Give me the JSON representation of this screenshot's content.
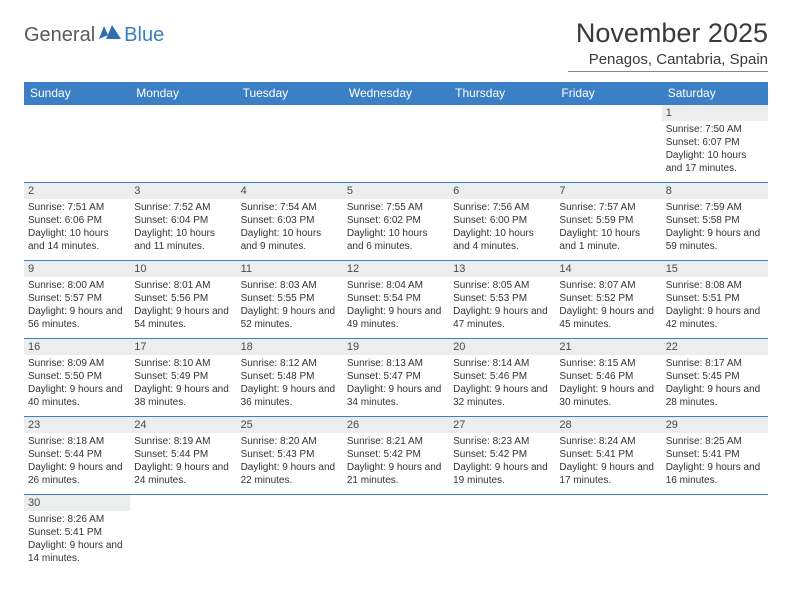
{
  "logo": {
    "part1": "General",
    "part2": "Blue"
  },
  "title": "November 2025",
  "location": "Penagos, Cantabria, Spain",
  "colors": {
    "headerBg": "#3b7fc4",
    "headerText": "#ffffff",
    "dayNumBg": "#eceded",
    "borderColor": "#3b7fc4",
    "logoGray": "#5a5a5a",
    "logoBlue": "#3a7fc0"
  },
  "weekdays": [
    "Sunday",
    "Monday",
    "Tuesday",
    "Wednesday",
    "Thursday",
    "Friday",
    "Saturday"
  ],
  "weeks": [
    [
      null,
      null,
      null,
      null,
      null,
      null,
      {
        "n": "1",
        "sr": "7:50 AM",
        "ss": "6:07 PM",
        "dl": "10 hours and 17 minutes."
      }
    ],
    [
      {
        "n": "2",
        "sr": "7:51 AM",
        "ss": "6:06 PM",
        "dl": "10 hours and 14 minutes."
      },
      {
        "n": "3",
        "sr": "7:52 AM",
        "ss": "6:04 PM",
        "dl": "10 hours and 11 minutes."
      },
      {
        "n": "4",
        "sr": "7:54 AM",
        "ss": "6:03 PM",
        "dl": "10 hours and 9 minutes."
      },
      {
        "n": "5",
        "sr": "7:55 AM",
        "ss": "6:02 PM",
        "dl": "10 hours and 6 minutes."
      },
      {
        "n": "6",
        "sr": "7:56 AM",
        "ss": "6:00 PM",
        "dl": "10 hours and 4 minutes."
      },
      {
        "n": "7",
        "sr": "7:57 AM",
        "ss": "5:59 PM",
        "dl": "10 hours and 1 minute."
      },
      {
        "n": "8",
        "sr": "7:59 AM",
        "ss": "5:58 PM",
        "dl": "9 hours and 59 minutes."
      }
    ],
    [
      {
        "n": "9",
        "sr": "8:00 AM",
        "ss": "5:57 PM",
        "dl": "9 hours and 56 minutes."
      },
      {
        "n": "10",
        "sr": "8:01 AM",
        "ss": "5:56 PM",
        "dl": "9 hours and 54 minutes."
      },
      {
        "n": "11",
        "sr": "8:03 AM",
        "ss": "5:55 PM",
        "dl": "9 hours and 52 minutes."
      },
      {
        "n": "12",
        "sr": "8:04 AM",
        "ss": "5:54 PM",
        "dl": "9 hours and 49 minutes."
      },
      {
        "n": "13",
        "sr": "8:05 AM",
        "ss": "5:53 PM",
        "dl": "9 hours and 47 minutes."
      },
      {
        "n": "14",
        "sr": "8:07 AM",
        "ss": "5:52 PM",
        "dl": "9 hours and 45 minutes."
      },
      {
        "n": "15",
        "sr": "8:08 AM",
        "ss": "5:51 PM",
        "dl": "9 hours and 42 minutes."
      }
    ],
    [
      {
        "n": "16",
        "sr": "8:09 AM",
        "ss": "5:50 PM",
        "dl": "9 hours and 40 minutes."
      },
      {
        "n": "17",
        "sr": "8:10 AM",
        "ss": "5:49 PM",
        "dl": "9 hours and 38 minutes."
      },
      {
        "n": "18",
        "sr": "8:12 AM",
        "ss": "5:48 PM",
        "dl": "9 hours and 36 minutes."
      },
      {
        "n": "19",
        "sr": "8:13 AM",
        "ss": "5:47 PM",
        "dl": "9 hours and 34 minutes."
      },
      {
        "n": "20",
        "sr": "8:14 AM",
        "ss": "5:46 PM",
        "dl": "9 hours and 32 minutes."
      },
      {
        "n": "21",
        "sr": "8:15 AM",
        "ss": "5:46 PM",
        "dl": "9 hours and 30 minutes."
      },
      {
        "n": "22",
        "sr": "8:17 AM",
        "ss": "5:45 PM",
        "dl": "9 hours and 28 minutes."
      }
    ],
    [
      {
        "n": "23",
        "sr": "8:18 AM",
        "ss": "5:44 PM",
        "dl": "9 hours and 26 minutes."
      },
      {
        "n": "24",
        "sr": "8:19 AM",
        "ss": "5:44 PM",
        "dl": "9 hours and 24 minutes."
      },
      {
        "n": "25",
        "sr": "8:20 AM",
        "ss": "5:43 PM",
        "dl": "9 hours and 22 minutes."
      },
      {
        "n": "26",
        "sr": "8:21 AM",
        "ss": "5:42 PM",
        "dl": "9 hours and 21 minutes."
      },
      {
        "n": "27",
        "sr": "8:23 AM",
        "ss": "5:42 PM",
        "dl": "9 hours and 19 minutes."
      },
      {
        "n": "28",
        "sr": "8:24 AM",
        "ss": "5:41 PM",
        "dl": "9 hours and 17 minutes."
      },
      {
        "n": "29",
        "sr": "8:25 AM",
        "ss": "5:41 PM",
        "dl": "9 hours and 16 minutes."
      }
    ],
    [
      {
        "n": "30",
        "sr": "8:26 AM",
        "ss": "5:41 PM",
        "dl": "9 hours and 14 minutes."
      },
      null,
      null,
      null,
      null,
      null,
      null
    ]
  ],
  "labels": {
    "sunrise": "Sunrise:",
    "sunset": "Sunset:",
    "daylight": "Daylight:"
  }
}
